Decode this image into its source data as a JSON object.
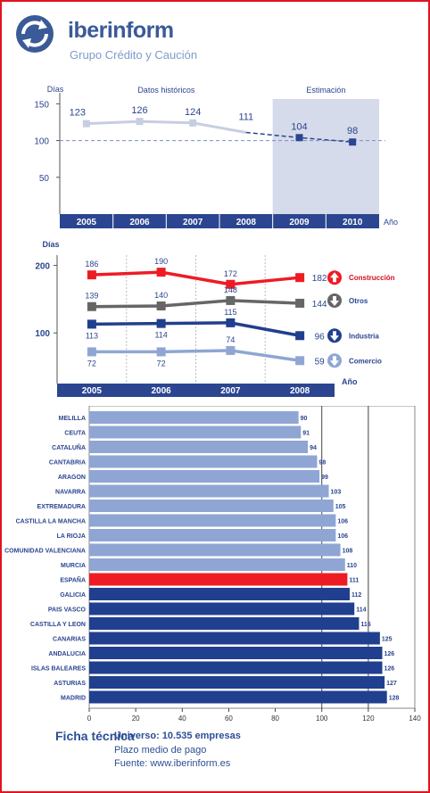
{
  "brand": {
    "name_bold": "iber",
    "name_rest": "inform",
    "tagline": "Grupo Crédito y Caución"
  },
  "colors": {
    "navy": "#2b4590",
    "frame": "#e0141e",
    "light_bar": "#8fa6d4",
    "dark_bar": "#213f8f",
    "spain": "#ee1b24"
  },
  "chart_data": [
    {
      "type": "line",
      "ylabel": "Días",
      "xlabel": "Año",
      "section_labels": [
        "Datos históricos",
        "Estimación"
      ],
      "x": [
        "2005",
        "2006",
        "2007",
        "2008",
        "2009",
        "2010"
      ],
      "series": [
        {
          "values": [
            123,
            126,
            124,
            111,
            null,
            null
          ]
        },
        {
          "values": [
            null,
            null,
            null,
            111,
            104,
            98
          ]
        }
      ],
      "data_labels": [
        "123",
        "126",
        "124",
        "111",
        "104",
        "98"
      ],
      "reference_line": 100,
      "yticks": [
        50,
        100,
        150
      ],
      "ylim": [
        0,
        165
      ]
    },
    {
      "type": "line",
      "ylabel": "Días",
      "xlabel": "Año",
      "x": [
        "2005",
        "2006",
        "2007",
        "2008"
      ],
      "yticks": [
        100,
        200
      ],
      "ylim": [
        25,
        210
      ],
      "series": [
        {
          "name": "Construcción",
          "values": [
            186,
            190,
            172,
            182
          ],
          "color": "#ee1b24",
          "trend": "up"
        },
        {
          "name": "Otros",
          "values": [
            139,
            140,
            148,
            144
          ],
          "color": "#666666",
          "trend": "down"
        },
        {
          "name": "Industria",
          "values": [
            113,
            114,
            115,
            96
          ],
          "color": "#213f8f",
          "trend": "down"
        },
        {
          "name": "Comercio",
          "values": [
            72,
            72,
            74,
            59
          ],
          "color": "#8fa6d4",
          "trend": "down"
        }
      ]
    },
    {
      "type": "bar",
      "orientation": "horizontal",
      "categories": [
        "MELILLA",
        "CEUTA",
        "CATALUÑA",
        "CANTABRIA",
        "ARAGON",
        "NAVARRA",
        "EXTREMADURA",
        "CASTILLA LA MANCHA",
        "LA RIOJA",
        "COMUNIDAD VALENCIANA",
        "MURCIA",
        "ESPAÑA",
        "GALICIA",
        "PAIS VASCO",
        "CASTILLA Y LEON",
        "CANARIAS",
        "ANDALUCIA",
        "ISLAS BALEARES",
        "ASTURIAS",
        "MADRID"
      ],
      "values": [
        90,
        91,
        94,
        98,
        99,
        103,
        105,
        106,
        106,
        108,
        110,
        111,
        112,
        114,
        116,
        125,
        126,
        126,
        127,
        128
      ],
      "value_labels": [
        "90",
        "91",
        "94",
        "98",
        "99",
        "103",
        "105",
        "106",
        "106",
        "108",
        "110",
        "111",
        "112",
        "114",
        "116",
        "125",
        "126",
        "126",
        "127",
        "128"
      ],
      "xticks": [
        0,
        20,
        40,
        60,
        80,
        100,
        120,
        140
      ],
      "xlim": [
        0,
        140
      ]
    }
  ],
  "ficha": {
    "title": "Ficha técnica",
    "universo": "Universo: 10.535 empresas",
    "plazo": "Plazo medio de pago",
    "fuente": "Fuente: www.iberinform.es"
  }
}
